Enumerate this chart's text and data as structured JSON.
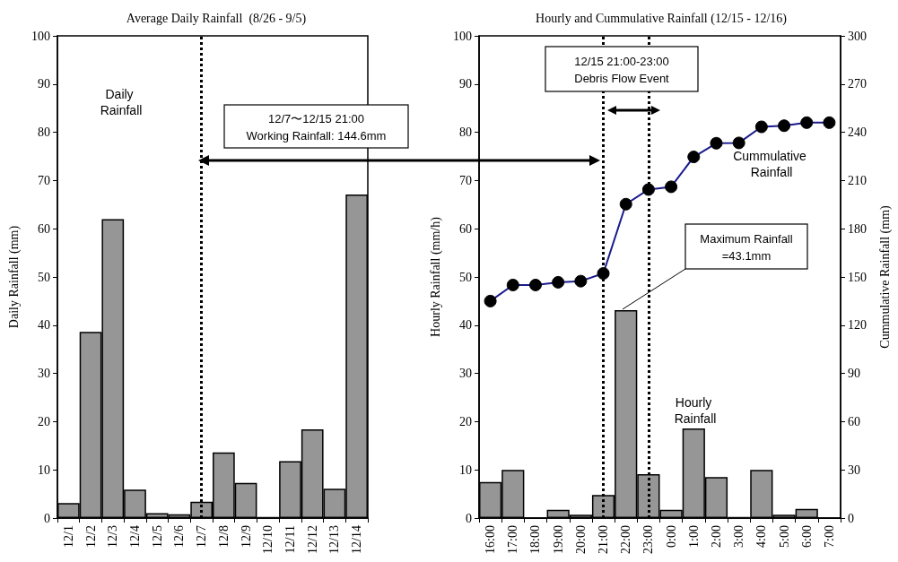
{
  "chart_data": [
    {
      "type": "bar",
      "title": "Average Daily Rainfall  (8/26 - 9/5)",
      "ylabel": "Daily Rainfall (mm)",
      "categories": [
        "12/1",
        "12/2",
        "12/3",
        "12/4",
        "12/5",
        "12/6",
        "12/7",
        "12/8",
        "12/9",
        "12/10",
        "12/11",
        "12/12",
        "12/13",
        "12/14"
      ],
      "series": [
        {
          "name": "Daily Rainfall",
          "color": "#969696",
          "values": [
            3.1,
            38.6,
            62,
            5.9,
            1,
            0.8,
            3.4,
            13.6,
            7.3,
            0.2,
            11.8,
            18.4,
            6.1,
            67.1
          ]
        }
      ],
      "ylim": [
        0,
        100
      ],
      "yticks": [
        0,
        10,
        20,
        30,
        40,
        50,
        60,
        70,
        80,
        90,
        100
      ],
      "grid": false,
      "legend": false,
      "ref_lines": [
        {
          "axis": "x",
          "value": "12/7",
          "color": "#000000",
          "line_style": "dotted"
        }
      ],
      "annotations": [
        "12/7〜12/15  21:00\nWorking Rainfall: 144.6mm"
      ]
    },
    {
      "type": "bar",
      "title": "Hourly and Cummulative Rainfall (12/15 - 12/16)",
      "ylabel": "Hourly Rainfall (mm/h)",
      "y2label": "Cummulative Rainfall (mm)",
      "categories": [
        "16:00",
        "17:00",
        "18:00",
        "19:00",
        "20:00",
        "21:00",
        "22:00",
        "23:00",
        "0:00",
        "1:00",
        "2:00",
        "3:00",
        "4:00",
        "5:00",
        "6:00",
        "7:00"
      ],
      "series": [
        {
          "name": "Hourly Rainfall",
          "color": "#969696",
          "values": [
            7.5,
            10,
            0,
            1.7,
            0.7,
            4.8,
            43.1,
            9.1,
            1.7,
            18.6,
            8.5,
            0.2,
            10,
            0.7,
            1.9,
            0
          ]
        },
        {
          "name": "Cummulative Rainfall",
          "type": "line",
          "axis": "y2",
          "color": "#1a1a8c",
          "values": [
            135,
            145,
            145,
            146.7,
            147.4,
            152.2,
            195.3,
            204.4,
            206.1,
            224.7,
            233.2,
            233.4,
            243.4,
            244.1,
            246,
            246
          ]
        }
      ],
      "ylim": [
        0,
        100
      ],
      "yticks": [
        0,
        10,
        20,
        30,
        40,
        50,
        60,
        70,
        80,
        90,
        100
      ],
      "y2lim": [
        0,
        300
      ],
      "y2ticks": [
        0,
        30,
        60,
        90,
        120,
        150,
        180,
        210,
        240,
        270,
        300
      ],
      "grid": false,
      "legend": false,
      "marker": "circle",
      "line_style": "solid",
      "ref_lines": [
        {
          "axis": "x",
          "value": "21:00",
          "color": "#000000",
          "line_style": "dotted"
        },
        {
          "axis": "x",
          "value": "23:00",
          "color": "#000000",
          "line_style": "dotted"
        }
      ],
      "annotations": [
        "12/15 21:00-23:00\nDebris Flow Event",
        "Maximum Rainfall\n=43.1mm"
      ]
    }
  ]
}
